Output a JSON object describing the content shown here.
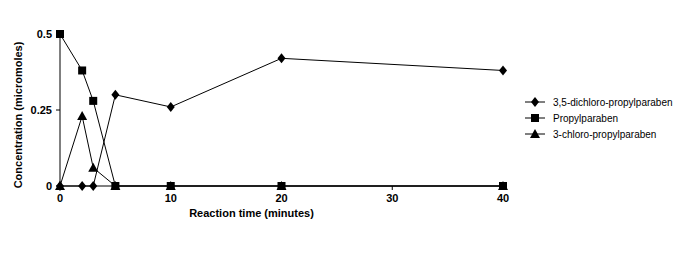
{
  "chart_data": {
    "type": "line",
    "x_label": "Reaction time (minutes)",
    "y_label": "Concentration (micromoles)",
    "x": [
      0,
      2,
      3,
      5,
      10,
      20,
      40
    ],
    "xlim": [
      0,
      40
    ],
    "xticks": [
      0,
      10,
      20,
      30,
      40
    ],
    "ylim": [
      0,
      0.5
    ],
    "yticks": [
      0,
      0.25,
      0.5
    ],
    "legend": "right",
    "series": [
      {
        "name": "3,5-dichloro-propylparaben",
        "color": "#000000",
        "marker": "diamond",
        "line_style": "solid",
        "values": [
          0,
          0,
          0,
          0.3,
          0.26,
          0.42,
          0.38
        ]
      },
      {
        "name": "Propylparaben",
        "color": "#000000",
        "marker": "square",
        "line_style": "solid",
        "values": [
          0.5,
          0.38,
          0.28,
          0,
          0,
          0,
          0
        ]
      },
      {
        "name": "3-chloro-propylparaben",
        "color": "#000000",
        "marker": "triangle",
        "line_style": "solid",
        "values": [
          0,
          0.23,
          0.06,
          0,
          0,
          0,
          0
        ]
      }
    ]
  }
}
